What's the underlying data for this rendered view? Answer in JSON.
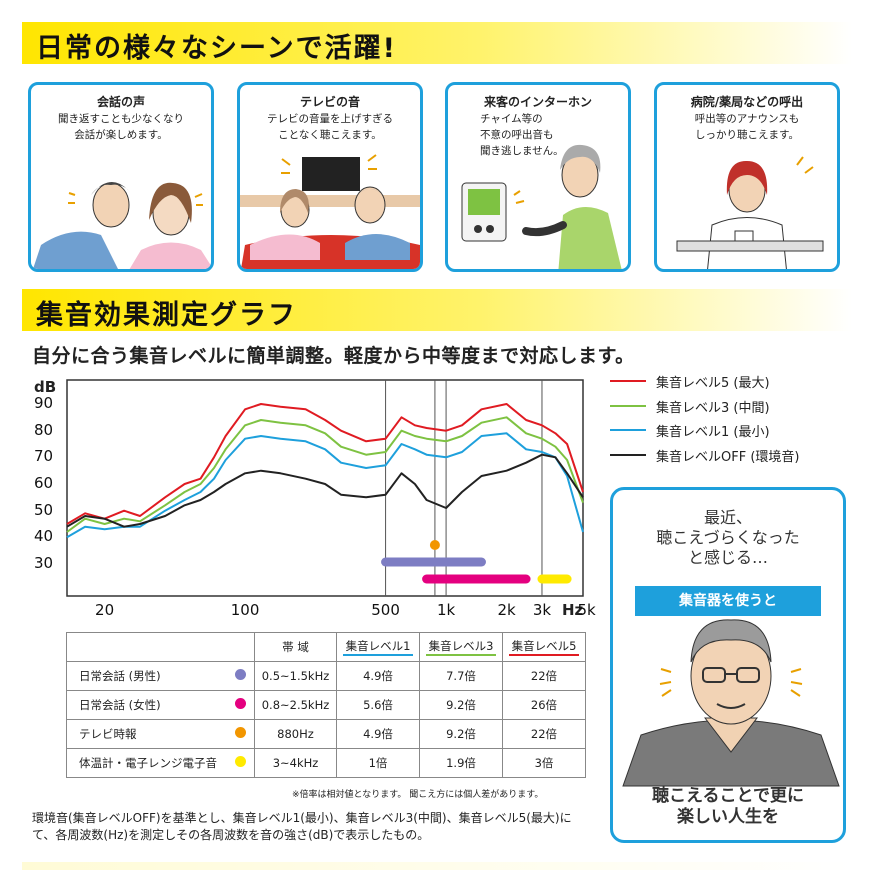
{
  "section1": {
    "title": "日常の様々なシーンで活躍!"
  },
  "scenes": [
    {
      "title": "会話の声",
      "desc": "聞き返すことも少なくなり\n会話が楽しめます。"
    },
    {
      "title": "テレビの音",
      "desc": "テレビの音量を上げすぎる\nことなく聴こえます。"
    },
    {
      "title": "来客のインターホン",
      "desc": "チャイム等の\n不意の呼出音も\n聞き逃しません。"
    },
    {
      "title": "病院/薬局などの呼出",
      "desc": "呼出等のアナウンスも\nしっかり聴こえます。"
    }
  ],
  "section2": {
    "title": "集音効果測定グラフ",
    "subtitle": "自分に合う集音レベルに簡単調整。軽度から中等度まで対応します。"
  },
  "chart_data": {
    "type": "line",
    "ylabel": "dB",
    "xlabel": "Hz",
    "x_scale": "log",
    "xlim": [
      13,
      4800
    ],
    "ylim": [
      18,
      99
    ],
    "y_ticks": [
      30,
      40,
      50,
      60,
      70,
      80,
      90
    ],
    "x_ticks": [
      20,
      100,
      500,
      1000,
      2000,
      3000,
      5000
    ],
    "x_tick_labels": [
      "20",
      "100",
      "500",
      "1k",
      "2k",
      "3k",
      "5k"
    ],
    "grid": "vertical markers at 500, 880, 1000, 3000",
    "legend_position": "right",
    "x": [
      13,
      16,
      20,
      25,
      30,
      40,
      50,
      60,
      70,
      80,
      100,
      120,
      150,
      200,
      250,
      300,
      400,
      500,
      600,
      700,
      800,
      1000,
      1200,
      1500,
      2000,
      2500,
      3000,
      3500,
      4000,
      4800
    ],
    "series": [
      {
        "name": "集音レベル5 (最大)",
        "color": "#e01b22",
        "values": [
          45,
          49,
          47,
          50,
          48,
          55,
          60,
          62,
          70,
          78,
          88,
          90,
          89,
          88,
          84,
          80,
          76,
          77,
          85,
          82,
          81,
          80,
          82,
          88,
          90,
          84,
          82,
          79,
          75,
          57
        ]
      },
      {
        "name": "集音レベル3 (中間)",
        "color": "#7ec242",
        "values": [
          42,
          47,
          45,
          47,
          46,
          52,
          57,
          60,
          66,
          73,
          82,
          84,
          83,
          82,
          79,
          74,
          71,
          72,
          80,
          78,
          77,
          76,
          78,
          83,
          85,
          79,
          77,
          74,
          69,
          53
        ]
      },
      {
        "name": "集音レベル1 (最小)",
        "color": "#1ea0dc",
        "values": [
          40,
          44,
          43,
          44,
          44,
          50,
          54,
          57,
          62,
          69,
          77,
          78,
          77,
          76,
          73,
          68,
          66,
          67,
          75,
          73,
          71,
          70,
          72,
          78,
          79,
          73,
          72,
          70,
          63,
          42
        ]
      },
      {
        "name": "集音レベルOFF (環境音)",
        "color": "#222222",
        "values": [
          44,
          48,
          47,
          44,
          45,
          48,
          52,
          54,
          57,
          60,
          64,
          65,
          64,
          62,
          60,
          56,
          55,
          56,
          64,
          60,
          54,
          51,
          57,
          63,
          65,
          68,
          71,
          70,
          64,
          55
        ]
      }
    ],
    "ranges": [
      {
        "label": "日常会話 (男性)",
        "from": 500,
        "to": 1500,
        "color": "#7d7dc3"
      },
      {
        "label": "日常会話 (女性)",
        "from": 800,
        "to": 2500,
        "color": "#e4007f"
      },
      {
        "label": "テレビ時報",
        "at": 880,
        "color": "#f29600"
      },
      {
        "label": "体温計・電子レンジ電子音",
        "from": 3000,
        "to": 4000,
        "color": "#ffea00"
      }
    ]
  },
  "table": {
    "headers": [
      "",
      "帯 域",
      "集音レベル1",
      "集音レベル3",
      "集音レベル5"
    ],
    "header_colors": [
      "",
      "",
      "#1ea0dc",
      "#7ec242",
      "#e01b22"
    ],
    "rows": [
      {
        "label": "日常会話 (男性)",
        "dot": "#7d7dc3",
        "band": "0.5~1.5kHz",
        "l1": "4.9倍",
        "l3": "7.7倍",
        "l5": "22倍"
      },
      {
        "label": "日常会話 (女性)",
        "dot": "#e4007f",
        "band": "0.8~2.5kHz",
        "l1": "5.6倍",
        "l3": "9.2倍",
        "l5": "26倍"
      },
      {
        "label": "テレビ時報",
        "dot": "#f29600",
        "band": "880Hz",
        "l1": "4.9倍",
        "l3": "9.2倍",
        "l5": "22倍"
      },
      {
        "label": "体温計・電子レンジ電子音",
        "dot": "#ffea00",
        "band": "3~4kHz",
        "l1": "1倍",
        "l3": "1.9倍",
        "l5": "3倍"
      }
    ]
  },
  "note": "※倍率は相対値となります。 聞こえ方には個人差があります。",
  "footnote": "環境音(集音レベルOFF)を基準とし、集音レベル1(最小)、集音レベル3(中間)、集音レベル5(最大)にて、各周波数(Hz)を測定しその各周波数を音の強さ(dB)で表示したもの。",
  "callout": {
    "top": "最近、\n聴こえづらくなった\nと感じる…",
    "button": "集音器を使うと",
    "bottom": "聴こえることで更に\n楽しい人生を"
  }
}
